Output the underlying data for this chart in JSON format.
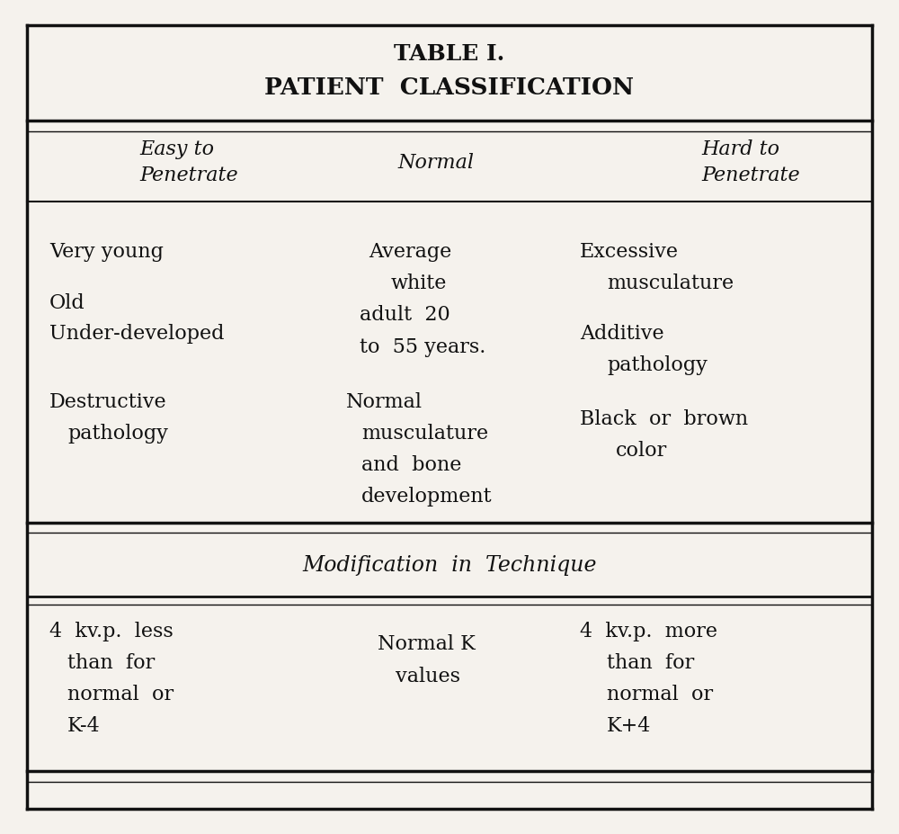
{
  "title1": "TABLE I.",
  "title2": "PATIENT  CLASSIFICATION",
  "col_headers": [
    "Easy to\nPenetrate",
    "Normal",
    "Hard to\nPenetrate"
  ],
  "col1_items": [
    "Very young",
    "Old\nUnder-developed",
    "Destructive\n  pathology"
  ],
  "col2_items": [
    "Average\n  white\nadult  20\n  to 55 years.",
    "Normal\n  musculature\n  and bone\n  development"
  ],
  "col3_items": [
    "Excessive\n    musculature",
    "Additive\n    pathology",
    "Black or  brown\n    color"
  ],
  "mod_title": "Modification in Technique",
  "mod_col1": "4  kv.p.  less\n  than  for\n  normal  or\n  K-4",
  "mod_col2": "Normal K\n  values",
  "mod_col3": "4  kv.p.  more\n  than  for\n  normal  or\n  K+4",
  "bg_color": "#f5f2ed",
  "text_color": "#111111",
  "line_color": "#111111",
  "title_fontsize": 18,
  "header_fontsize": 16,
  "body_fontsize": 16,
  "mod_title_fontsize": 17
}
